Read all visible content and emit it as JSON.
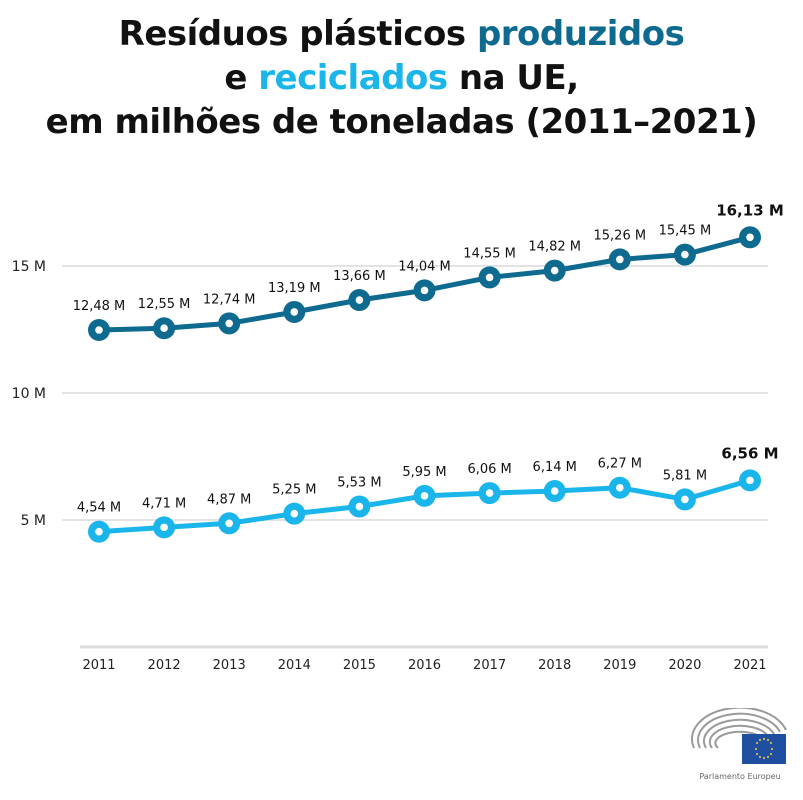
{
  "title": {
    "part1": "Resíduos plásticos ",
    "part2": "produzidos",
    "part3": "e ",
    "part4": "reciclados",
    "part5": " na UE,",
    "part6": "em milhões de toneladas (2011–2021)"
  },
  "colors": {
    "produced": "#0e6a8f",
    "recycled": "#1ab5ea",
    "grid": "#e3e3e3"
  },
  "chart_data": {
    "type": "line",
    "title": "Resíduos plásticos produzidos e reciclados na UE, em milhões de toneladas (2011–2021)",
    "xlabel": "",
    "ylabel": "",
    "ylim": [
      0,
      17
    ],
    "grid": true,
    "x": [
      "2011",
      "2012",
      "2013",
      "2014",
      "2015",
      "2016",
      "2017",
      "2018",
      "2019",
      "2020",
      "2021"
    ],
    "yticks": [
      {
        "value": 5,
        "label": "5 M"
      },
      {
        "value": 10,
        "label": "10 M"
      },
      {
        "value": 15,
        "label": "15 M"
      }
    ],
    "series": [
      {
        "name": "produzidos",
        "values": [
          12.48,
          12.55,
          12.74,
          13.19,
          13.66,
          14.04,
          14.55,
          14.82,
          15.26,
          15.45,
          16.13
        ],
        "labels": [
          "12,48 M",
          "12,55 M",
          "12,74 M",
          "13,19 M",
          "13,66 M",
          "14,04 M",
          "14,55 M",
          "14,82 M",
          "15,26 M",
          "15,45 M",
          "16,13 M"
        ]
      },
      {
        "name": "reciclados",
        "values": [
          4.54,
          4.71,
          4.87,
          5.25,
          5.53,
          5.95,
          6.06,
          6.14,
          6.27,
          5.81,
          6.56
        ],
        "labels": [
          "4,54 M",
          "4,71 M",
          "4,87 M",
          "5,25 M",
          "5,53 M",
          "5,95 M",
          "6,06 M",
          "6,14 M",
          "6,27 M",
          "5,81 M",
          "6,56 M"
        ]
      }
    ]
  },
  "logo": {
    "text": "Parlamento Europeu"
  }
}
